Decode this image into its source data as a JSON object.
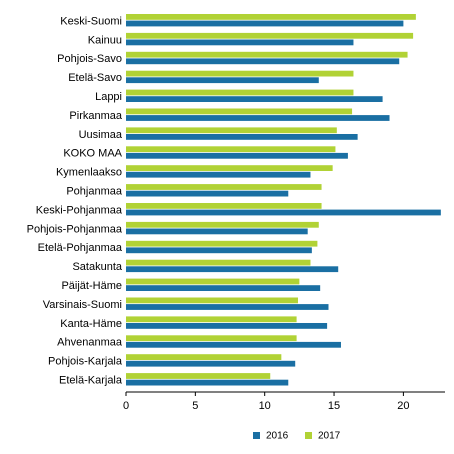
{
  "chart_data": {
    "type": "bar",
    "orientation": "horizontal",
    "title": "",
    "xlabel": "",
    "ylabel": "",
    "xlim": [
      0,
      23
    ],
    "xticks": [
      "0",
      "5",
      "10",
      "15",
      "20"
    ],
    "grid": false,
    "legend_placement": "bottom",
    "categories": [
      "Keski-Suomi",
      "Kainuu",
      "Pohjois-Savo",
      "Etelä-Savo",
      "Lappi",
      "Pirkanmaa",
      "Uusimaa",
      "KOKO MAA",
      "Kymenlaakso",
      "Pohjanmaa",
      "Keski-Pohjanmaa",
      "Pohjois-Pohjanmaa",
      "Etelä-Pohjanmaa",
      "Satakunta",
      "Päijät-Häme",
      "Varsinais-Suomi",
      "Kanta-Häme",
      "Ahvenanmaa",
      "Pohjois-Karjala",
      "Etelä-Karjala"
    ],
    "series": [
      {
        "name": "2016",
        "color": "#1a6fa3",
        "values": [
          20.0,
          16.4,
          19.7,
          13.9,
          18.5,
          19.0,
          16.7,
          16.0,
          13.3,
          11.7,
          22.7,
          13.1,
          13.4,
          15.3,
          14.0,
          14.6,
          14.5,
          15.5,
          12.2,
          11.7
        ]
      },
      {
        "name": "2017",
        "color": "#b1d235",
        "values": [
          20.9,
          20.7,
          20.3,
          16.4,
          16.4,
          16.3,
          15.2,
          15.1,
          14.9,
          14.1,
          14.1,
          13.9,
          13.8,
          13.3,
          12.5,
          12.4,
          12.3,
          12.3,
          11.2,
          10.4
        ]
      }
    ]
  }
}
